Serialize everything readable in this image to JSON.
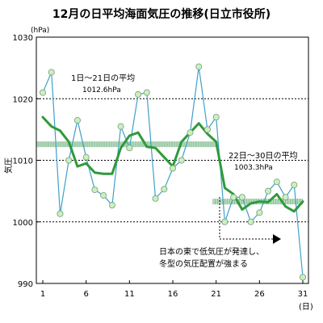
{
  "chart_data": {
    "type": "line",
    "title": "12月の日平均海面気圧の推移(日立市役所)",
    "ylabel": "気圧",
    "yunit": "(hPa)",
    "xunit": "(日)",
    "ylim": [
      990,
      1030
    ],
    "xlim": [
      1,
      31
    ],
    "yticks": [
      990,
      1000,
      1010,
      1020,
      1030
    ],
    "xticks": [
      1,
      6,
      11,
      16,
      21,
      26,
      31
    ],
    "gridlines_y": [
      1000,
      1010,
      1020
    ],
    "series": [
      {
        "id": "daily",
        "color": "#3fa0c8",
        "marker_fill": "#c9f0bf",
        "x": [
          1,
          2,
          3,
          4,
          5,
          6,
          7,
          8,
          9,
          10,
          11,
          12,
          13,
          14,
          15,
          16,
          17,
          18,
          19,
          20,
          21,
          22,
          23,
          24,
          25,
          26,
          27,
          28,
          29,
          30,
          31
        ],
        "values": [
          1021.0,
          1024.3,
          1001.3,
          1010.0,
          1016.5,
          1010.5,
          1005.2,
          1004.3,
          1002.7,
          1015.5,
          1012.0,
          1020.7,
          1021.0,
          1003.8,
          1005.3,
          1008.7,
          1010.0,
          1014.5,
          1025.2,
          1015.0,
          1017.0,
          1000.0,
          1004.0,
          1004.0,
          1000.0,
          1001.5,
          1005.0,
          1006.5,
          1004.0,
          1006.0,
          991.0
        ]
      },
      {
        "id": "moving-average",
        "color": "#2f9a3a",
        "x": [
          1,
          2,
          3,
          4,
          5,
          6,
          7,
          8,
          9,
          10,
          11,
          12,
          13,
          14,
          15,
          16,
          17,
          18,
          19,
          20,
          21,
          22,
          23,
          24,
          25,
          26,
          27,
          28,
          29,
          30,
          31
        ],
        "values": [
          1017.0,
          1015.5,
          1014.8,
          1013.0,
          1009.0,
          1009.5,
          1008.0,
          1007.8,
          1007.8,
          1012.0,
          1014.0,
          1014.5,
          1012.2,
          1012.0,
          1010.5,
          1009.0,
          1013.0,
          1014.5,
          1016.0,
          1014.3,
          1013.0,
          1005.5,
          1004.5,
          1002.0,
          1003.0,
          1003.3,
          1003.2,
          1004.5,
          1002.5,
          1001.7,
          1003.3
        ]
      }
    ],
    "period_averages": [
      {
        "label": "1日～21日の平均",
        "value_text": "1012.6hPa",
        "value": 1012.6,
        "from": 1,
        "to": 21
      },
      {
        "label": "22日～30日の平均",
        "value_text": "1003.3hPa",
        "value": 1003.3,
        "from": 21,
        "to": 31
      }
    ],
    "annotation": {
      "line1": "日本の東で低気圧が発達し、",
      "line2": "冬型の気圧配置が強まる"
    }
  },
  "colors": {
    "band": "#b3d9bb",
    "band_stripe": "#7ab089",
    "grid": "#000000"
  }
}
